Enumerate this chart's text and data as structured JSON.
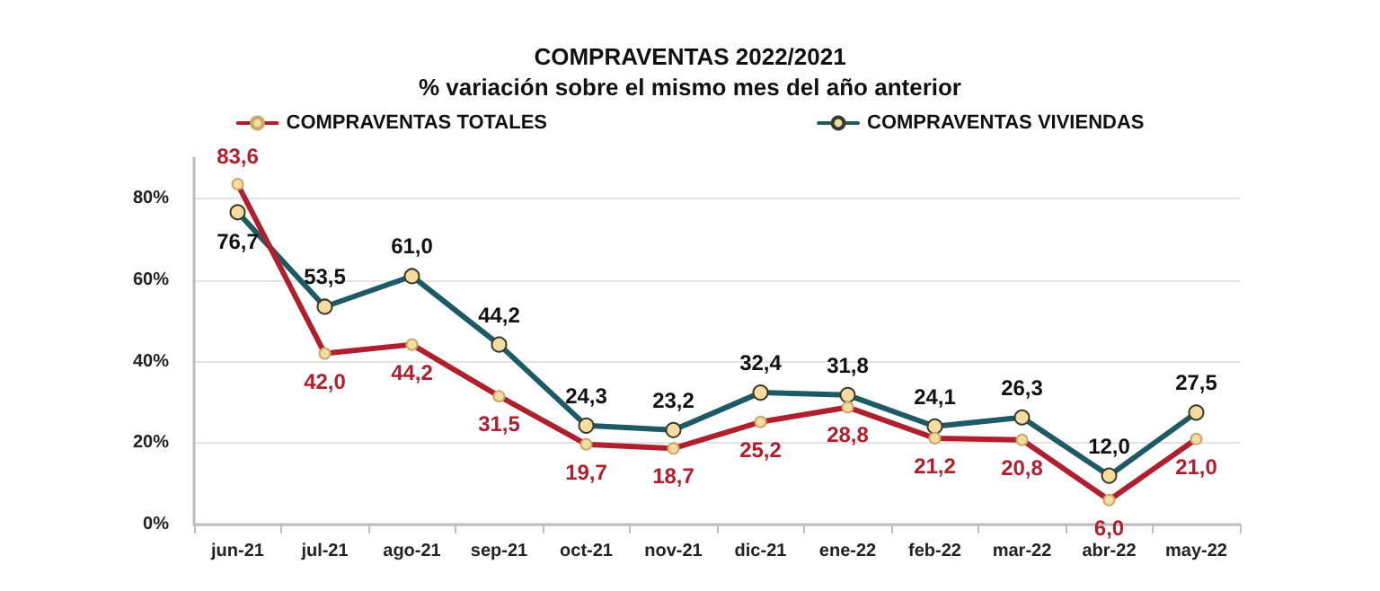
{
  "chart_data": {
    "type": "line",
    "title": "COMPRAVENTAS 2022/2021",
    "subtitle": "% variación sobre el mismo mes del año anterior",
    "categories": [
      "jun-21",
      "jul-21",
      "ago-21",
      "sep-21",
      "oct-21",
      "nov-21",
      "dic-21",
      "ene-22",
      "feb-22",
      "mar-22",
      "abr-22",
      "may-22"
    ],
    "series": [
      {
        "name": "COMPRAVENTAS TOTALES",
        "color": "#b01f2e",
        "values": [
          83.6,
          42.0,
          44.2,
          31.5,
          19.7,
          18.7,
          25.2,
          28.8,
          21.2,
          20.8,
          6.0,
          21.0
        ],
        "value_labels": [
          "83,6",
          "42,0",
          "44,2",
          "31,5",
          "19,7",
          "18,7",
          "25,2",
          "28,8",
          "21,2",
          "20,8",
          "6,0",
          "21,0"
        ]
      },
      {
        "name": "COMPRAVENTAS VIVIENDAS",
        "color": "#1e5a66",
        "values": [
          76.7,
          53.5,
          61.0,
          44.2,
          24.3,
          23.2,
          32.4,
          31.8,
          24.1,
          26.3,
          12.0,
          27.5
        ],
        "value_labels": [
          "76,7",
          "53,5",
          "61,0",
          "44,2",
          "24,3",
          "23,2",
          "32,4",
          "31,8",
          "24,1",
          "26,3",
          "12,0",
          "27,5"
        ]
      }
    ],
    "ylim": [
      0,
      90
    ],
    "yticks": [
      {
        "value": 0,
        "label": "0%"
      },
      {
        "value": 20,
        "label": "20%"
      },
      {
        "value": 40,
        "label": "40%"
      },
      {
        "value": 60,
        "label": "60%"
      },
      {
        "value": 80,
        "label": "80%"
      }
    ],
    "grid": "y",
    "legend": "top",
    "marker": "circle",
    "line_style": "solid"
  }
}
